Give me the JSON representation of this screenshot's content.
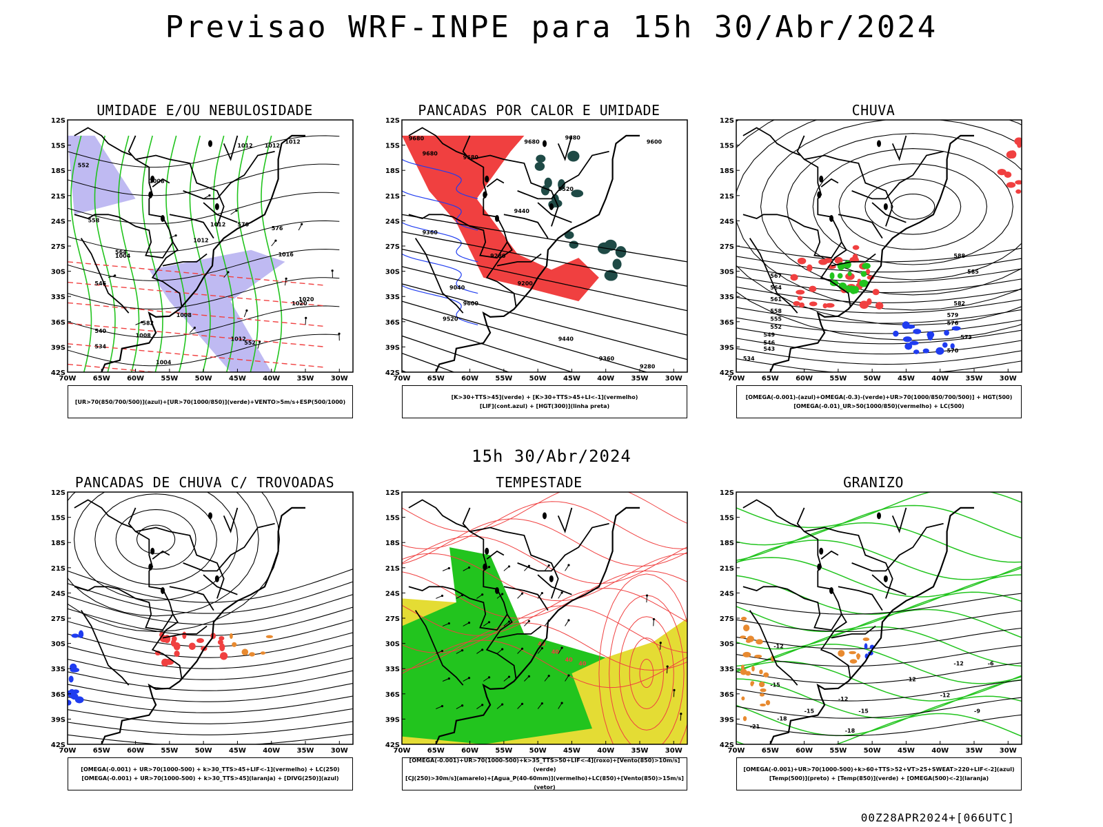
{
  "header": {
    "title": "Previsao WRF-INPE  para 15h 30/Abr/2024",
    "mid_title": "15h 30/Abr/2024",
    "footer": "00Z28APR2024+[066UTC]"
  },
  "axes": {
    "lat_labels": [
      "12S",
      "15S",
      "18S",
      "21S",
      "24S",
      "27S",
      "30S",
      "33S",
      "36S",
      "39S",
      "42S"
    ],
    "lon_labels": [
      "70W",
      "65W",
      "60W",
      "55W",
      "50W",
      "45W",
      "40W",
      "35W",
      "30W"
    ]
  },
  "panels": [
    {
      "id": "umidade",
      "title": "UMIDADE E/OU NEBULOSIDADE",
      "legend": [
        "[UR>70(850/700/500)](azul)+[UR>70(1000/850)](verde)+VENTO>5m/s+ESP(500/1000)"
      ],
      "contour_labels": [
        "1012",
        "1012",
        "1012",
        "1008",
        "1012",
        "1012",
        "1016",
        "1004",
        "1008",
        "1020",
        "1020",
        "1008",
        "1012",
        "1004",
        "552",
        "570",
        "576",
        "558",
        "564",
        "546",
        "582",
        "540",
        "534",
        "552"
      ]
    },
    {
      "id": "pancadas-calor",
      "title": "PANCADAS POR CALOR E UMIDADE",
      "legend": [
        "[K>30+TTS>45](verde) + [K>30+TTS>45+LI<-1](vermelho)",
        "[LIF](cont.azul) + [HGT(300)](linha preta)"
      ],
      "contour_labels": [
        "9680",
        "9680",
        "9680",
        "9680",
        "9680",
        "9600",
        "9520",
        "9440",
        "9360",
        "9280",
        "9200",
        "9040",
        "9600",
        "9520",
        "9440",
        "9360",
        "9280"
      ]
    },
    {
      "id": "chuva",
      "title": "CHUVA",
      "legend": [
        "[OMEGA(-0.001)-(azul)+OMEGA(-0.3)-(verde)+UR>70(1000/850/700/500)] + HGT(500)",
        "[OMEGA(-0.01)_UR>50(1000/850)(vermelho) + LC(500)"
      ],
      "contour_labels": [
        "588",
        "585",
        "582",
        "579",
        "576",
        "573",
        "570",
        "567",
        "564",
        "561",
        "558",
        "555",
        "552",
        "549",
        "546",
        "543",
        "534"
      ]
    },
    {
      "id": "pancadas-trovoadas",
      "title": "PANCADAS DE CHUVA C/ TROVOADAS",
      "legend": [
        "[OMEGA(-0.001) + UR>70(1000-500) + k>30_TTS>45+LIF<-1](vermelho) + LC(250)",
        "[OMEGA(-0.001) + UR>70(1000-500) + k>30_TTS>45](laranja) + [DIVG(250)](azul)"
      ],
      "contour_labels": []
    },
    {
      "id": "tempestade",
      "title": "TEMPESTADE",
      "legend": [
        "[OMEGA(-0.001)+UR>70(1000-500)+k>35_TTS>50+LIF<-4](roxo)+[Vento(850)>10m/s](verde)",
        "[CJ(250)>30m/s](amarelo)+[Agua_P(40-60mm)](vermelho)+LC(850)+[Vento(850)>15m/s](vetor)"
      ],
      "contour_labels": [
        "40",
        "40",
        "40",
        "40"
      ]
    },
    {
      "id": "granizo",
      "title": "GRANIZO",
      "legend": [
        "[OMEGA(-0.001)+UR>70(1000-500)+k>60+TTS>52+VT>25+SWEAT>220+LIF<-2](azul)",
        "[Temp(500)](preto) + [Temp(850)](verde) + [OMEGA(500)<-2](laranja)"
      ],
      "contour_labels": [
        "-12",
        "-15",
        "-18",
        "-12",
        "-12",
        "-12",
        "-15",
        "-18",
        "-21",
        "-15",
        "-9",
        "-6",
        "-12"
      ]
    }
  ],
  "colors": {
    "green": "#22c41e",
    "red": "#f04040",
    "blue": "#1f3cf0",
    "lavender": "#b4aef0",
    "darkteal": "#1f4a46",
    "yellow": "#e4dc34",
    "orange": "#e88a30",
    "black": "#000000"
  }
}
